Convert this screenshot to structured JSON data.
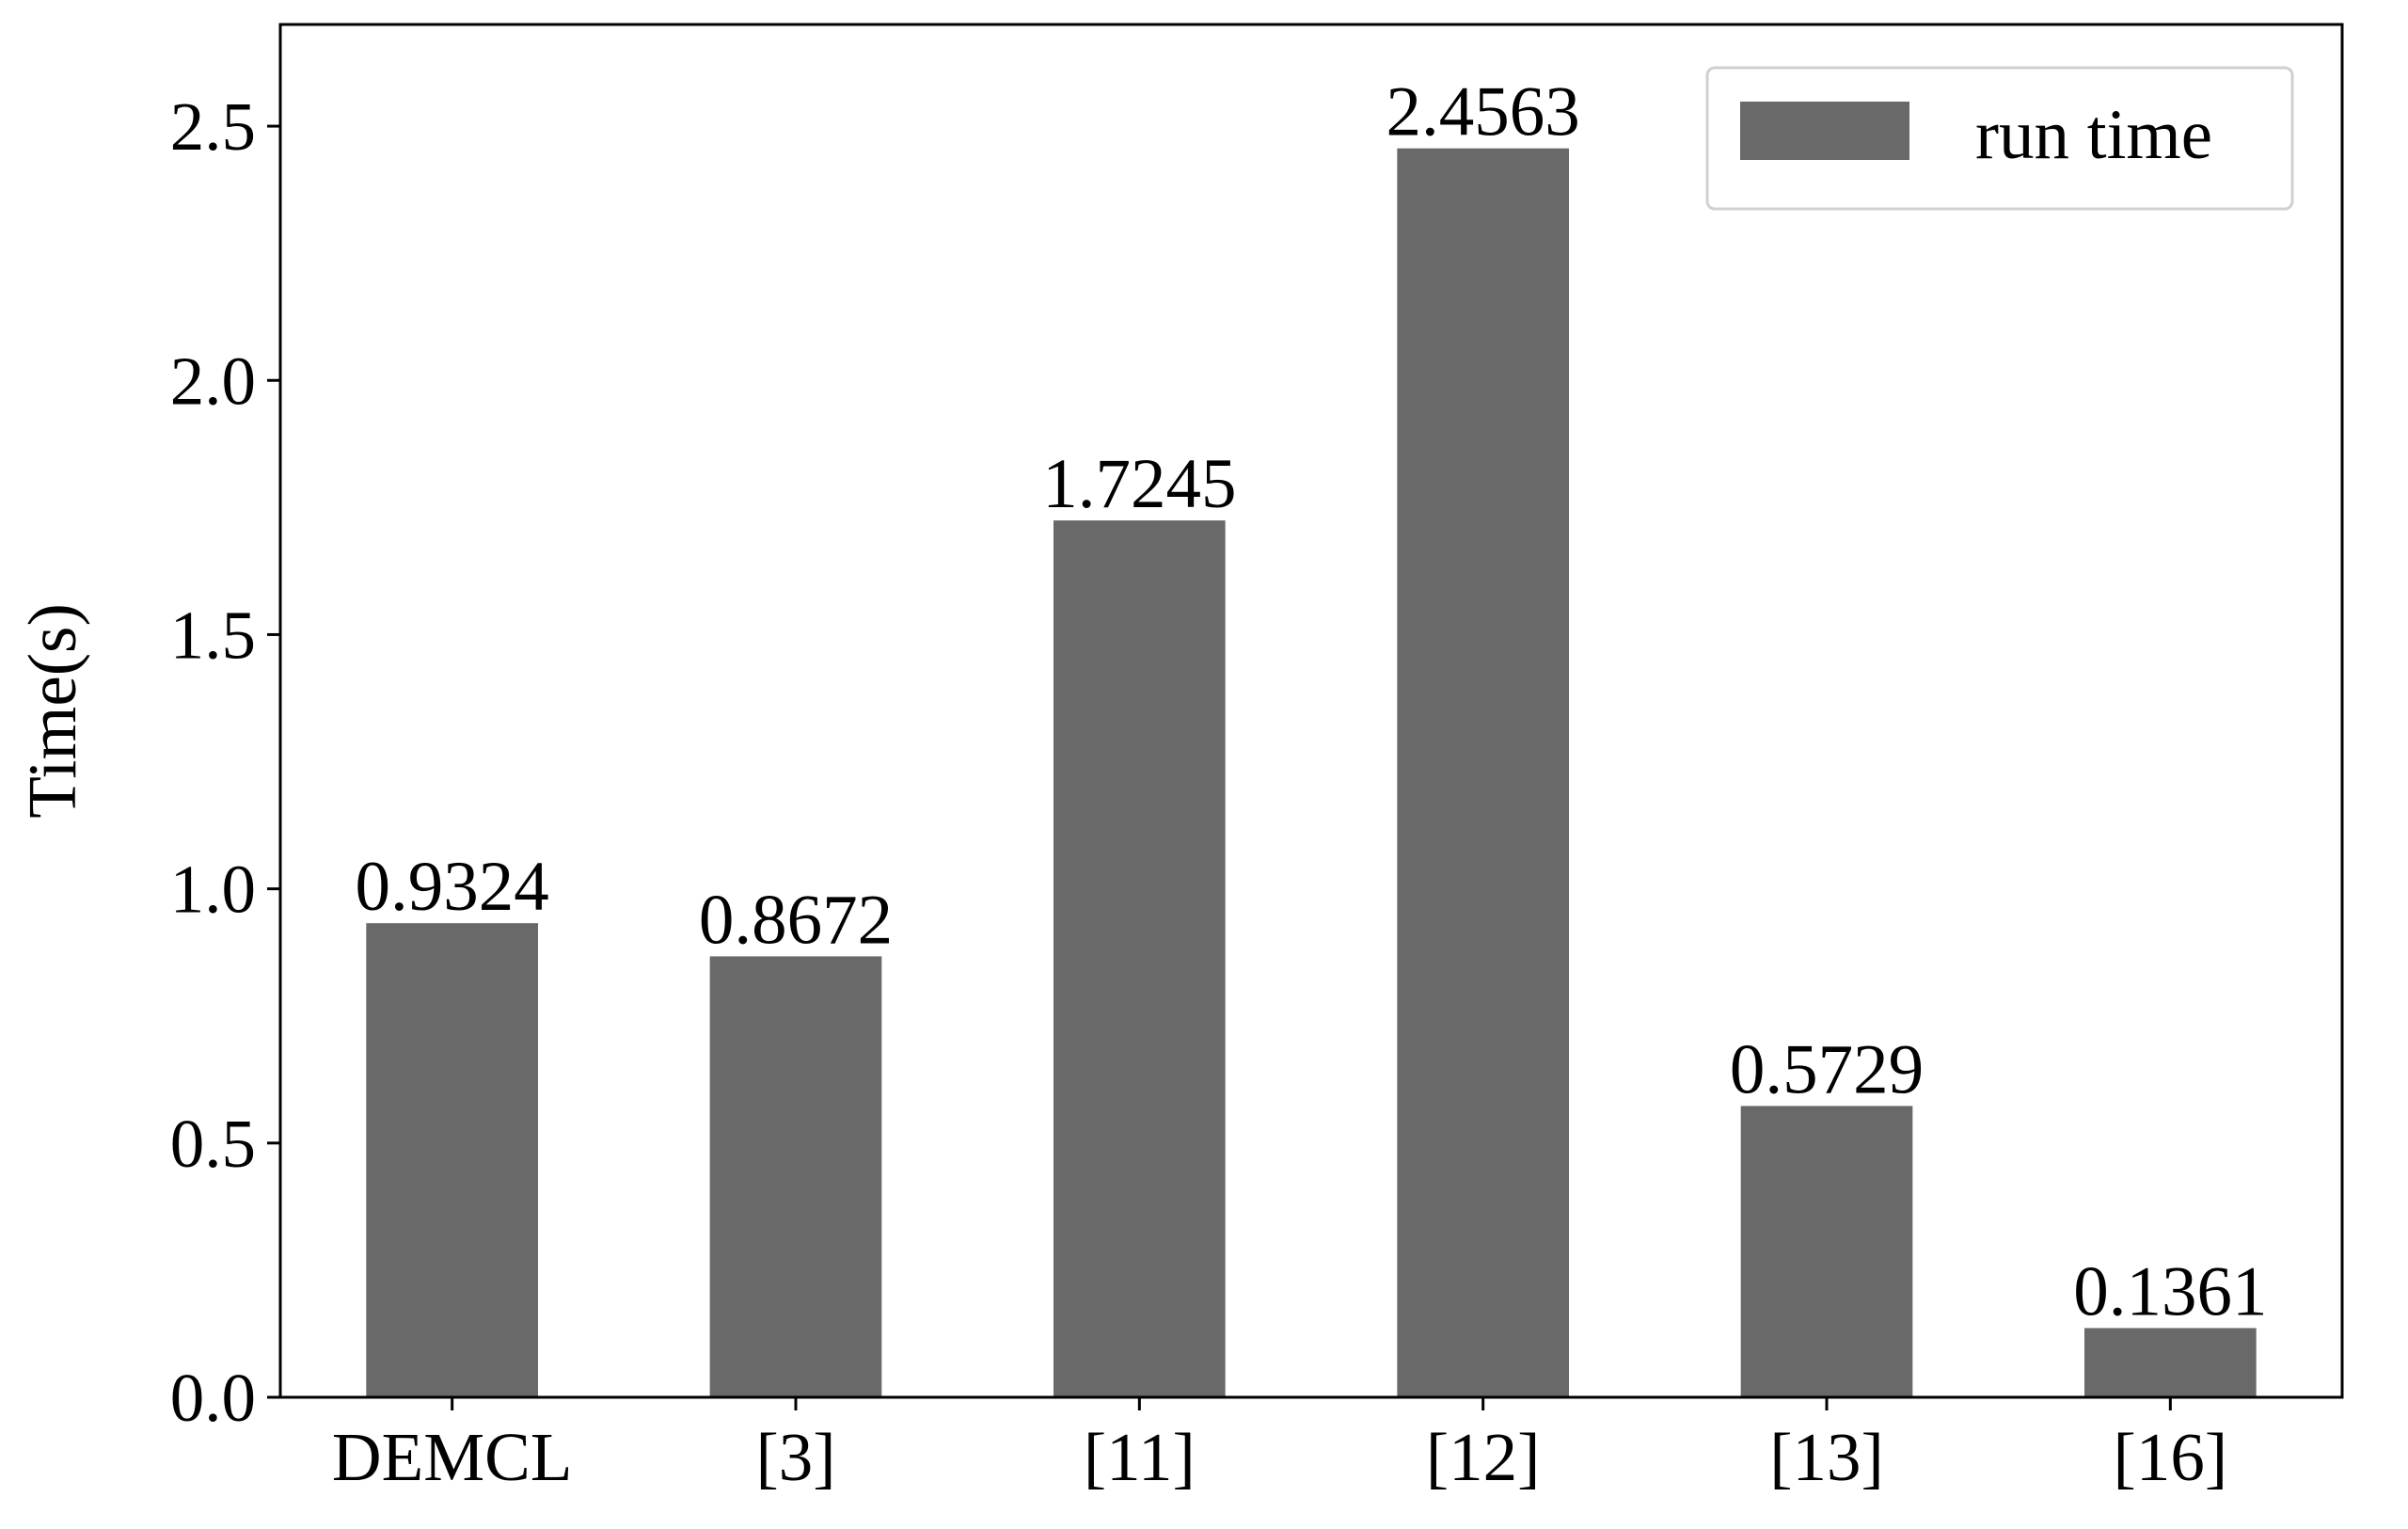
{
  "chart_data": {
    "type": "bar",
    "title": "",
    "xlabel": "",
    "ylabel": "Time(s)",
    "categories": [
      "DEMCL",
      "[3]",
      "[11]",
      "[12]",
      "[13]",
      "[16]"
    ],
    "series": [
      {
        "name": "run time",
        "values": [
          0.9324,
          0.8672,
          1.7245,
          2.4563,
          0.5729,
          0.1361
        ],
        "color": "#696969"
      }
    ],
    "data_labels": [
      "0.9324",
      "0.8672",
      "1.7245",
      "2.4563",
      "0.5729",
      "0.1361"
    ],
    "ylim": [
      0,
      2.7
    ],
    "yticks": [
      0.0,
      0.5,
      1.0,
      1.5,
      2.0,
      2.5
    ],
    "ytick_labels": [
      "0.0",
      "0.5",
      "1.0",
      "1.5",
      "2.0",
      "2.5"
    ],
    "grid": false,
    "legend": {
      "position": "top-right",
      "entries": [
        "run time"
      ]
    }
  }
}
